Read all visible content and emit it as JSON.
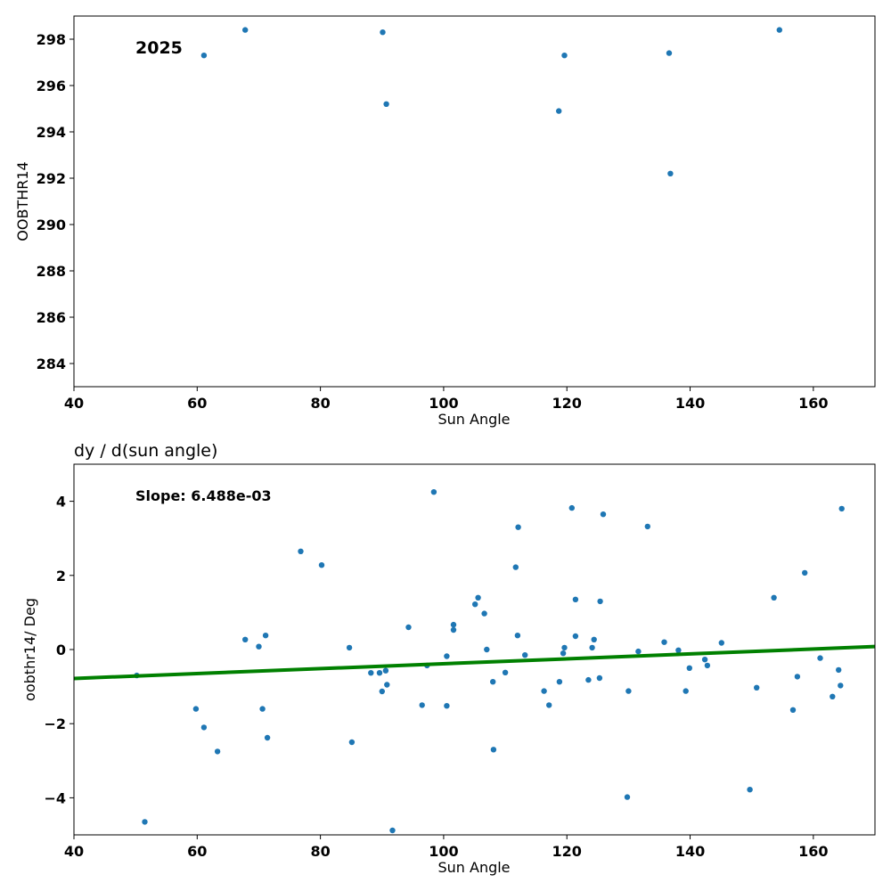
{
  "chart_data": [
    {
      "type": "scatter",
      "title": "",
      "xlabel": "Sun Angle",
      "ylabel": "OOBTHR14",
      "xlim": [
        40,
        170
      ],
      "ylim": [
        283,
        299
      ],
      "xticks": [
        40,
        60,
        80,
        100,
        120,
        140,
        160
      ],
      "yticks": [
        284,
        286,
        288,
        290,
        292,
        294,
        296,
        298
      ],
      "annotation": "2025",
      "grid": false,
      "series": [
        {
          "color": "#1f77b4",
          "points": [
            [
              61.1,
              297.3
            ],
            [
              67.8,
              298.4
            ],
            [
              90.1,
              298.3
            ],
            [
              90.7,
              295.2
            ],
            [
              118.7,
              294.9
            ],
            [
              119.6,
              297.3
            ],
            [
              136.6,
              297.4
            ],
            [
              136.8,
              292.2
            ],
            [
              154.5,
              298.4
            ]
          ]
        }
      ]
    },
    {
      "type": "scatter",
      "title": "dy / d(sun angle)",
      "xlabel": "Sun Angle",
      "ylabel": "oobthr14/ Deg",
      "xlim": [
        40,
        170
      ],
      "ylim": [
        -5,
        5
      ],
      "xticks": [
        40,
        60,
        80,
        100,
        120,
        140,
        160
      ],
      "yticks": [
        -4,
        -2,
        0,
        2,
        4
      ],
      "annotation": "Slope: 6.488e-03",
      "grid": false,
      "fit_line": {
        "color": "#008000",
        "points": [
          [
            40,
            -0.78
          ],
          [
            170,
            0.08
          ]
        ]
      },
      "series": [
        {
          "color": "#1f77b4",
          "points": [
            [
              50.2,
              -0.7
            ],
            [
              51.5,
              -4.65
            ],
            [
              59.8,
              -1.6
            ],
            [
              61.1,
              -2.1
            ],
            [
              63.3,
              -2.75
            ],
            [
              67.8,
              0.27
            ],
            [
              70.0,
              0.08
            ],
            [
              70.6,
              -1.6
            ],
            [
              71.1,
              0.38
            ],
            [
              71.4,
              -2.38
            ],
            [
              76.8,
              2.65
            ],
            [
              80.2,
              2.28
            ],
            [
              84.7,
              0.05
            ],
            [
              85.1,
              -2.5
            ],
            [
              88.2,
              -0.63
            ],
            [
              89.6,
              -0.63
            ],
            [
              90.0,
              -1.13
            ],
            [
              90.6,
              -0.57
            ],
            [
              90.8,
              -0.95
            ],
            [
              91.7,
              -4.88
            ],
            [
              94.3,
              0.6
            ],
            [
              96.5,
              -1.5
            ],
            [
              97.3,
              -0.43
            ],
            [
              98.4,
              4.25
            ],
            [
              100.5,
              -0.18
            ],
            [
              100.5,
              -1.52
            ],
            [
              101.6,
              0.67
            ],
            [
              101.6,
              0.53
            ],
            [
              105.1,
              1.22
            ],
            [
              105.6,
              1.4
            ],
            [
              106.6,
              0.97
            ],
            [
              107.0,
              0.0
            ],
            [
              108.0,
              -0.87
            ],
            [
              108.1,
              -2.7
            ],
            [
              110.0,
              -0.62
            ],
            [
              111.7,
              2.22
            ],
            [
              112.0,
              0.38
            ],
            [
              112.1,
              3.3
            ],
            [
              113.2,
              -0.15
            ],
            [
              116.3,
              -1.12
            ],
            [
              117.1,
              -1.5
            ],
            [
              118.8,
              -0.87
            ],
            [
              119.4,
              -0.1
            ],
            [
              119.6,
              0.05
            ],
            [
              120.8,
              3.82
            ],
            [
              121.4,
              1.35
            ],
            [
              121.4,
              0.36
            ],
            [
              123.5,
              -0.82
            ],
            [
              124.1,
              0.05
            ],
            [
              124.4,
              0.27
            ],
            [
              125.3,
              -0.77
            ],
            [
              125.4,
              1.3
            ],
            [
              125.9,
              3.65
            ],
            [
              129.8,
              -3.98
            ],
            [
              130.0,
              -1.12
            ],
            [
              131.6,
              -0.05
            ],
            [
              133.1,
              3.32
            ],
            [
              135.8,
              0.2
            ],
            [
              138.1,
              -0.02
            ],
            [
              139.3,
              -1.12
            ],
            [
              139.9,
              -0.5
            ],
            [
              142.4,
              -0.27
            ],
            [
              142.8,
              -0.43
            ],
            [
              145.1,
              0.18
            ],
            [
              149.7,
              -3.78
            ],
            [
              150.8,
              -1.03
            ],
            [
              153.6,
              1.4
            ],
            [
              156.7,
              -1.63
            ],
            [
              157.4,
              -0.73
            ],
            [
              158.6,
              2.07
            ],
            [
              161.1,
              -0.23
            ],
            [
              163.1,
              -1.27
            ],
            [
              164.1,
              -0.55
            ],
            [
              164.4,
              -0.97
            ],
            [
              164.6,
              3.8
            ]
          ]
        }
      ]
    }
  ]
}
